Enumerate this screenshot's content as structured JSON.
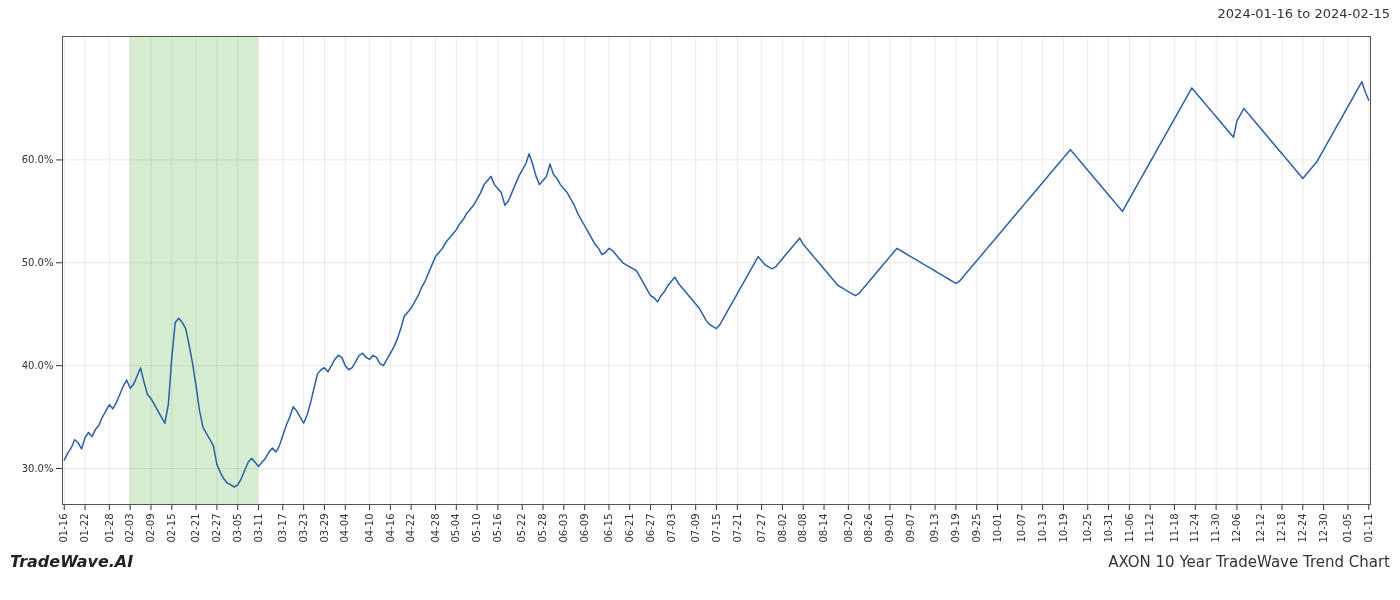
{
  "chart_data": {
    "type": "line",
    "title": "AXON 10 Year TradeWave Trend Chart",
    "subtitle": "2024-01-16 to 2024-02-15",
    "annotations": [
      "TradeWave.AI"
    ],
    "categories": [
      "01-16",
      null,
      null,
      null,
      null,
      null,
      "01-22",
      null,
      null,
      null,
      null,
      null,
      null,
      "01-28",
      null,
      null,
      null,
      null,
      null,
      "02-03",
      null,
      null,
      null,
      null,
      null,
      "02-09",
      null,
      null,
      null,
      null,
      null,
      "02-15",
      null,
      null,
      null,
      null,
      null,
      null,
      "02-21",
      null,
      null,
      null,
      null,
      null,
      "02-27",
      null,
      null,
      null,
      null,
      null,
      "03-05",
      null,
      null,
      null,
      null,
      null,
      "03-11",
      null,
      null,
      null,
      null,
      null,
      null,
      "03-17",
      null,
      null,
      null,
      null,
      null,
      "03-23",
      null,
      null,
      null,
      null,
      null,
      "03-29",
      null,
      null,
      null,
      null,
      null,
      "04-04",
      null,
      null,
      null,
      null,
      null,
      null,
      "04-10",
      null,
      null,
      null,
      null,
      null,
      "04-16",
      null,
      null,
      null,
      null,
      null,
      "04-22",
      null,
      null,
      null,
      null,
      null,
      null,
      "04-28",
      null,
      null,
      null,
      null,
      null,
      "05-04",
      null,
      null,
      null,
      null,
      null,
      "05-10",
      null,
      null,
      null,
      null,
      null,
      "05-16",
      null,
      null,
      null,
      null,
      null,
      null,
      "05-22",
      null,
      null,
      null,
      null,
      null,
      "05-28",
      null,
      null,
      null,
      null,
      null,
      "06-03",
      null,
      null,
      null,
      null,
      null,
      "06-09",
      null,
      null,
      null,
      null,
      null,
      null,
      "06-15",
      null,
      null,
      null,
      null,
      null,
      "06-21",
      null,
      null,
      null,
      null,
      null,
      "06-27",
      null,
      null,
      null,
      null,
      null,
      "07-03",
      null,
      null,
      null,
      null,
      null,
      null,
      "07-09",
      null,
      null,
      null,
      null,
      null,
      "07-15",
      null,
      null,
      null,
      null,
      null,
      "07-21",
      null,
      null,
      null,
      null,
      null,
      null,
      "07-27",
      null,
      null,
      null,
      null,
      null,
      "08-02",
      null,
      null,
      null,
      null,
      null,
      "08-08",
      null,
      null,
      null,
      null,
      null,
      "08-14",
      null,
      null,
      null,
      null,
      null,
      null,
      "08-20",
      null,
      null,
      null,
      null,
      null,
      "08-26",
      null,
      null,
      null,
      null,
      null,
      "09-01",
      null,
      null,
      null,
      null,
      null,
      "09-07",
      null,
      null,
      null,
      null,
      null,
      null,
      "09-13",
      null,
      null,
      null,
      null,
      null,
      "09-19",
      null,
      null,
      null,
      null,
      null,
      "09-25",
      null,
      null,
      null,
      null,
      null,
      "10-01",
      null,
      null,
      null,
      null,
      null,
      null,
      "10-07",
      null,
      null,
      null,
      null,
      null,
      "10-13",
      null,
      null,
      null,
      null,
      null,
      "10-19",
      null,
      null,
      null,
      null,
      null,
      null,
      "10-25",
      null,
      null,
      null,
      null,
      null,
      "10-31",
      null,
      null,
      null,
      null,
      null,
      "11-06",
      null,
      null,
      null,
      null,
      null,
      "11-12",
      null,
      null,
      null,
      null,
      null,
      null,
      "11-18",
      null,
      null,
      null,
      null,
      null,
      "11-24",
      null,
      null,
      null,
      null,
      null,
      "11-30",
      null,
      null,
      null,
      null,
      null,
      "12-06",
      null,
      null,
      null,
      null,
      null,
      null,
      "12-12",
      null,
      null,
      null,
      null,
      null,
      "12-18",
      null,
      null,
      null,
      null,
      null,
      "12-24",
      null,
      null,
      null,
      null,
      null,
      "12-30",
      null,
      null,
      null,
      null,
      null,
      null,
      "01-05",
      null,
      null,
      null,
      null,
      null,
      "01-11"
    ],
    "values": [
      0.308,
      0.315,
      0.32,
      0.328,
      0.325,
      0.319,
      0.33,
      0.335,
      0.331,
      0.338,
      0.342,
      0.35,
      0.356,
      0.362,
      0.358,
      0.364,
      0.372,
      0.38,
      0.386,
      0.378,
      0.382,
      0.39,
      0.398,
      0.384,
      0.372,
      0.368,
      0.362,
      0.356,
      0.35,
      0.344,
      0.362,
      0.408,
      0.442,
      0.446,
      0.442,
      0.436,
      0.42,
      0.402,
      0.38,
      0.356,
      0.34,
      0.334,
      0.328,
      0.322,
      0.304,
      0.296,
      0.29,
      0.286,
      0.284,
      0.282,
      0.284,
      0.29,
      0.298,
      0.306,
      0.31,
      0.306,
      0.302,
      0.306,
      0.31,
      0.316,
      0.32,
      0.316,
      0.322,
      0.332,
      0.342,
      0.35,
      0.36,
      0.356,
      0.35,
      0.344,
      0.352,
      0.364,
      0.378,
      0.392,
      0.396,
      0.398,
      0.394,
      0.4,
      0.406,
      0.41,
      0.408,
      0.4,
      0.396,
      0.398,
      0.404,
      0.41,
      0.412,
      0.408,
      0.406,
      0.41,
      0.408,
      0.402,
      0.4,
      0.406,
      0.412,
      0.418,
      0.426,
      0.436,
      0.448,
      0.452,
      0.456,
      0.462,
      0.468,
      0.476,
      0.482,
      0.49,
      0.498,
      0.506,
      0.51,
      0.514,
      0.52,
      0.524,
      0.528,
      0.532,
      0.538,
      0.542,
      0.548,
      0.552,
      0.556,
      0.562,
      0.568,
      0.576,
      0.58,
      0.584,
      0.576,
      0.572,
      0.568,
      0.556,
      0.56,
      0.568,
      0.576,
      0.584,
      0.59,
      0.596,
      0.606,
      0.596,
      0.584,
      0.576,
      0.58,
      0.584,
      0.596,
      0.586,
      0.582,
      0.576,
      0.572,
      0.568,
      0.562,
      0.556,
      0.548,
      0.542,
      0.536,
      0.53,
      0.524,
      0.518,
      0.514,
      0.508,
      0.51,
      0.514,
      0.512,
      0.508,
      0.504,
      0.5,
      0.498,
      0.496,
      0.494,
      0.492,
      0.486,
      0.48,
      0.474,
      0.468,
      0.466,
      0.462,
      0.468,
      0.472,
      0.478,
      0.482,
      0.486,
      0.48,
      0.476,
      0.472,
      0.468,
      0.464,
      0.46,
      0.456,
      0.45,
      0.444,
      0.44,
      0.438,
      0.436,
      0.44,
      0.446,
      0.452,
      0.458,
      0.464,
      0.47,
      0.476,
      0.482,
      0.488,
      0.494,
      0.5,
      0.506,
      0.502,
      0.498,
      0.496,
      0.494,
      0.496,
      0.5,
      0.504,
      0.508,
      0.512,
      0.516,
      0.52,
      0.524,
      0.518,
      0.514,
      0.51,
      0.506,
      0.502,
      0.498,
      0.494,
      0.49,
      0.486,
      0.482,
      0.478,
      0.476,
      0.474,
      0.472,
      0.47,
      0.468,
      0.47,
      0.474,
      0.478,
      0.482,
      0.486,
      0.49,
      0.494,
      0.498,
      0.502,
      0.506,
      0.51,
      0.514,
      0.512,
      0.51,
      0.508,
      0.506,
      0.504,
      0.502,
      0.5,
      0.498,
      0.496,
      0.494,
      0.492,
      0.49,
      0.488,
      0.486,
      0.484,
      0.482,
      0.48,
      0.482,
      0.486,
      0.49,
      0.494,
      0.498,
      0.502,
      0.506,
      0.51,
      0.514,
      0.518,
      0.522,
      0.526,
      0.53,
      0.534,
      0.538,
      0.542,
      0.546,
      0.55,
      0.554,
      0.558,
      0.562,
      0.566,
      0.57,
      0.574,
      0.578,
      0.582,
      0.586,
      0.59,
      0.594,
      0.598,
      0.602,
      0.606,
      0.61,
      0.606,
      0.602,
      0.598,
      0.594,
      0.59,
      0.586,
      0.582,
      0.578,
      0.574,
      0.57,
      0.566,
      0.562,
      0.558,
      0.554,
      0.55,
      0.556,
      0.562,
      0.568,
      0.574,
      0.58,
      0.586,
      0.592,
      0.598,
      0.604,
      0.61,
      0.616,
      0.622,
      0.628,
      0.634,
      0.64,
      0.646,
      0.652,
      0.658,
      0.664,
      0.67,
      0.666,
      0.662,
      0.658,
      0.654,
      0.65,
      0.646,
      0.642,
      0.638,
      0.634,
      0.63,
      0.626,
      0.622,
      0.638,
      0.644,
      0.65,
      0.646,
      0.642,
      0.638,
      0.634,
      0.63,
      0.626,
      0.622,
      0.618,
      0.614,
      0.61,
      0.606,
      0.602,
      0.598,
      0.594,
      0.59,
      0.586,
      0.582,
      0.586,
      0.59,
      0.594,
      0.598,
      0.604,
      0.61,
      0.616,
      0.622,
      0.628,
      0.634,
      0.64,
      0.646,
      0.652,
      0.658,
      0.664,
      0.67,
      0.676,
      0.666,
      0.658
    ],
    "color": "#2b5fa8",
    "highlight": {
      "from": "02-03",
      "to": "03-11",
      "color": "#d6ecd0"
    },
    "ylim": [
      0.265,
      0.72
    ],
    "yticks": [
      {
        "value": 0.3,
        "label": "30.0%"
      },
      {
        "value": 0.4,
        "label": "40.0%"
      },
      {
        "value": 0.5,
        "label": "50.0%"
      },
      {
        "value": 0.6,
        "label": "60.0%"
      }
    ],
    "grid": true
  }
}
